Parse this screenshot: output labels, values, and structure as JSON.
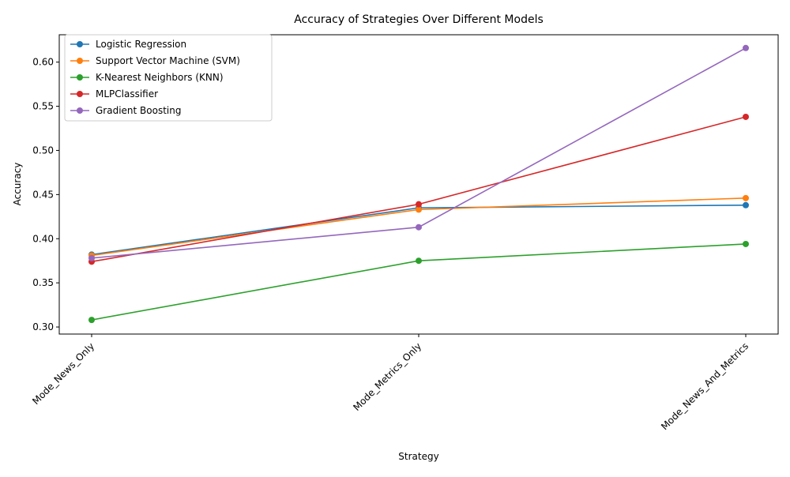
{
  "chart_data": {
    "type": "line",
    "title": "Accuracy of Strategies Over Different Models",
    "xlabel": "Strategy",
    "ylabel": "Accuracy",
    "categories": [
      "Mode_News_Only",
      "Mode_Metrics_Only",
      "Mode_News_And_Metrics"
    ],
    "ylim": [
      0.292,
      0.631
    ],
    "yticks": [
      0.3,
      0.35,
      0.4,
      0.45,
      0.5,
      0.55,
      0.6
    ],
    "ytick_labels": [
      "0.30",
      "0.35",
      "0.40",
      "0.45",
      "0.50",
      "0.55",
      "0.60"
    ],
    "grid": false,
    "legend_position": "top-left",
    "series": [
      {
        "name": "Logistic Regression",
        "color": "#1f77b4",
        "values": [
          0.382,
          0.435,
          0.438
        ]
      },
      {
        "name": "Support Vector Machine (SVM)",
        "color": "#ff7f0e",
        "values": [
          0.381,
          0.433,
          0.446
        ]
      },
      {
        "name": "K-Nearest Neighbors (KNN)",
        "color": "#2ca02c",
        "values": [
          0.308,
          0.375,
          0.394
        ]
      },
      {
        "name": "MLPClassifier",
        "color": "#d62728",
        "values": [
          0.374,
          0.439,
          0.538
        ]
      },
      {
        "name": "Gradient Boosting",
        "color": "#9467bd",
        "values": [
          0.378,
          0.413,
          0.616
        ]
      }
    ]
  }
}
